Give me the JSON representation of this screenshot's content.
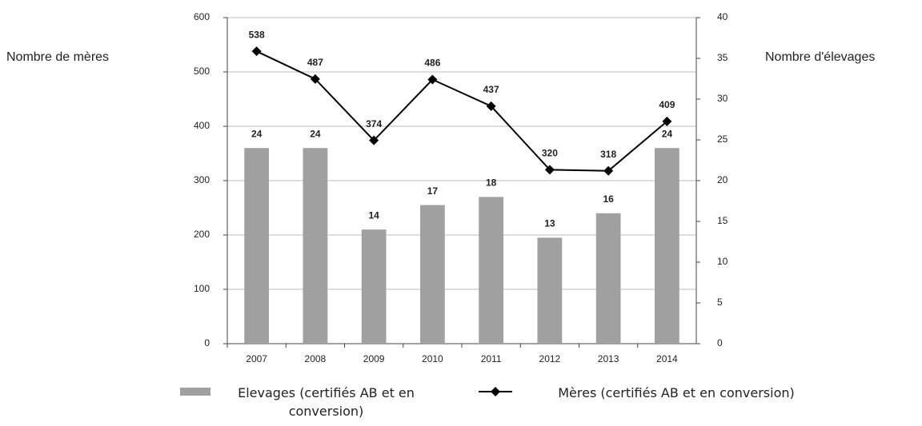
{
  "chart_data": {
    "type": "bar_line",
    "ylabel": "Nombre de mères",
    "y2label": "Nombre d'élevages",
    "categories": [
      "2007",
      "2008",
      "2009",
      "2010",
      "2011",
      "2012",
      "2013",
      "2014"
    ],
    "series": [
      {
        "name": "Elevages (certifiés AB et en conversion)",
        "type": "bar",
        "axis": "y2",
        "color": "#a0a0a0",
        "values": [
          24,
          24,
          14,
          17,
          18,
          13,
          16,
          24
        ]
      },
      {
        "name": "Mères (certifiés AB et en conversion)",
        "type": "line",
        "axis": "y",
        "color": "#000000",
        "values": [
          538,
          487,
          374,
          486,
          437,
          320,
          318,
          409
        ]
      }
    ],
    "ylim": [
      0,
      600
    ],
    "yticks": [
      0,
      100,
      200,
      300,
      400,
      500,
      600
    ],
    "y2lim": [
      0,
      40
    ],
    "y2ticks": [
      0,
      5,
      10,
      15,
      20,
      25,
      30,
      35,
      40
    ],
    "grid": true
  }
}
